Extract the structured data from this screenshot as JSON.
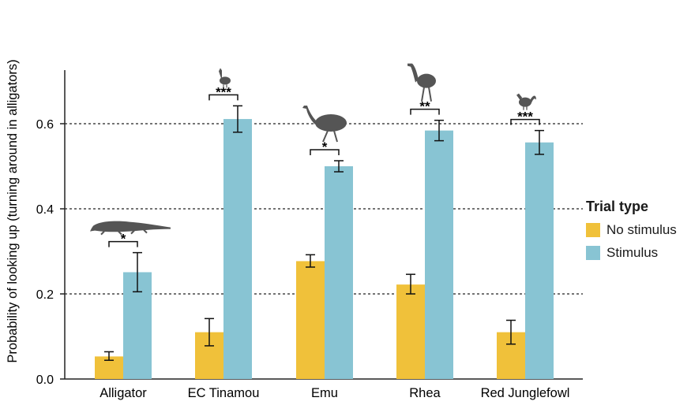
{
  "chart_data": {
    "type": "bar",
    "ylabel": "Probability of looking up (turning around in alligators)",
    "ylim": [
      0,
      0.72
    ],
    "yticks": [
      0.0,
      0.2,
      0.4,
      0.6
    ],
    "ytick_labels": [
      "0.0",
      "0.2",
      "0.4",
      "0.6"
    ],
    "reference_lines": [
      0.2,
      0.4,
      0.6
    ],
    "categories": [
      "Alligator",
      "EC Tinamou",
      "Emu",
      "Rhea",
      "Red Junglefowl"
    ],
    "series": [
      {
        "name": "No stimulus",
        "color": "#f0c13a",
        "values": [
          0.053,
          0.11,
          0.277,
          0.222,
          0.11
        ],
        "err_low": [
          0.044,
          0.078,
          0.263,
          0.2,
          0.082
        ],
        "err_high": [
          0.064,
          0.142,
          0.292,
          0.246,
          0.138
        ]
      },
      {
        "name": "Stimulus",
        "color": "#88c4d3",
        "values": [
          0.251,
          0.611,
          0.5,
          0.584,
          0.556
        ],
        "err_low": [
          0.205,
          0.58,
          0.487,
          0.56,
          0.528
        ],
        "err_high": [
          0.297,
          0.642,
          0.513,
          0.608,
          0.584
        ]
      }
    ],
    "significance": [
      "*",
      "***",
      "*",
      "**",
      "***"
    ],
    "silhouettes": [
      "alligator-icon",
      "tinamou-icon",
      "emu-icon",
      "rhea-icon",
      "junglefowl-icon"
    ],
    "legend": {
      "title": "Trial type",
      "position": "right"
    }
  }
}
